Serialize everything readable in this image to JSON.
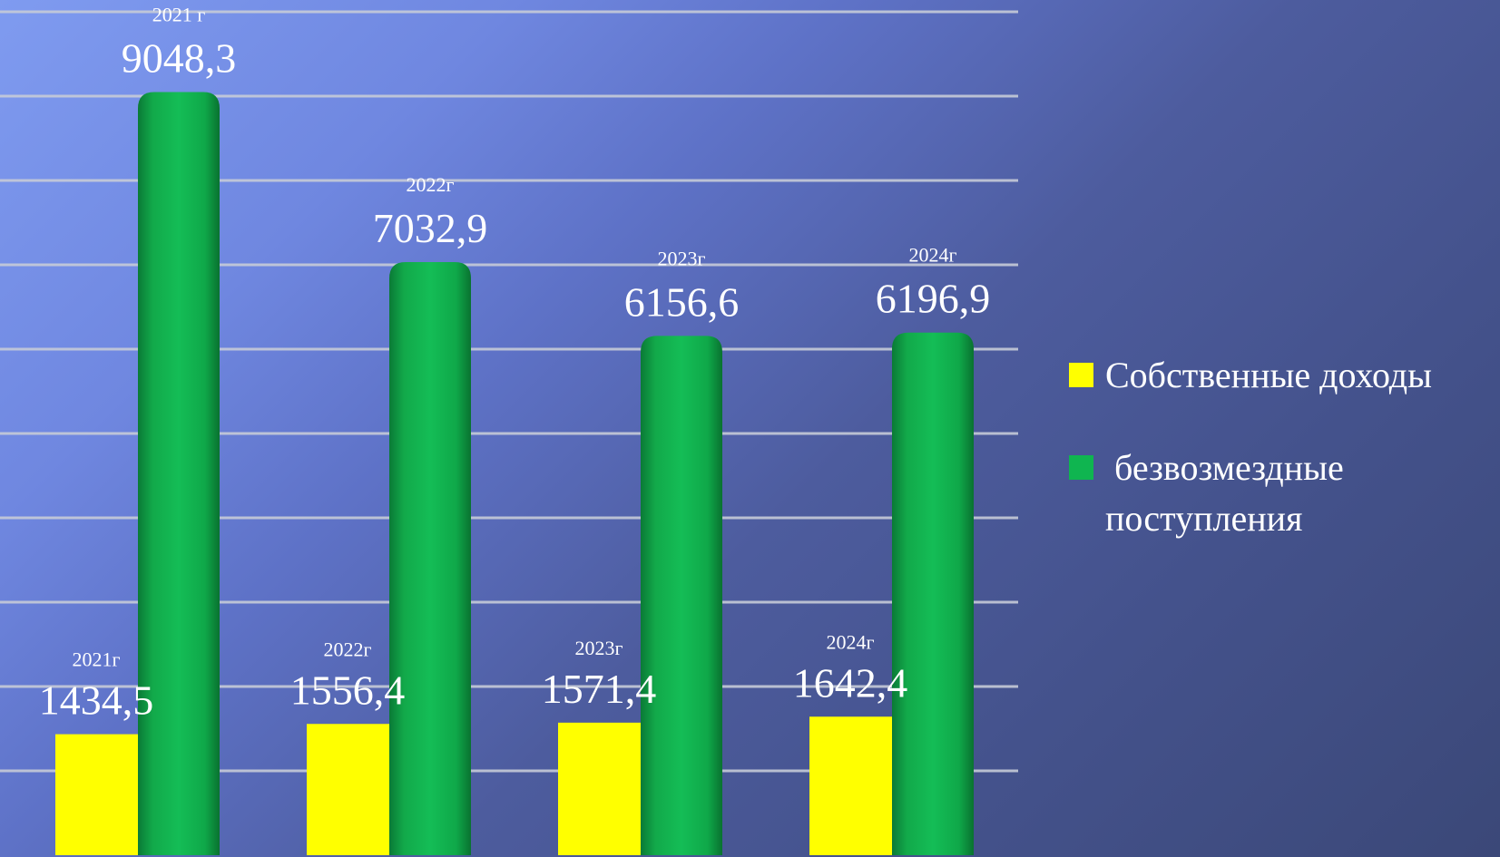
{
  "chart_data": {
    "type": "bar",
    "series": [
      {
        "name": "Собственные доходы",
        "color": "#ffff00",
        "values": [
          1434.5,
          1556.4,
          1571.4,
          1642.4
        ],
        "value_labels": [
          "1434,5",
          "1556,4",
          "1571,4",
          "1642,4"
        ],
        "year_labels": [
          "2021г",
          "2022г",
          "2023г",
          "2024г"
        ]
      },
      {
        "name": " безвозмездные поступления",
        "color": "#0fb550",
        "values": [
          9048.3,
          7032.9,
          6156.6,
          6196.9
        ],
        "value_labels": [
          "9048,3",
          "7032,9",
          "6156,6",
          "6196,9"
        ],
        "year_labels": [
          "2021 г",
          "2022г",
          "2023г",
          "2024г"
        ]
      }
    ],
    "ylim": [
      0,
      10000
    ],
    "grid": true,
    "legend_position": "right"
  }
}
